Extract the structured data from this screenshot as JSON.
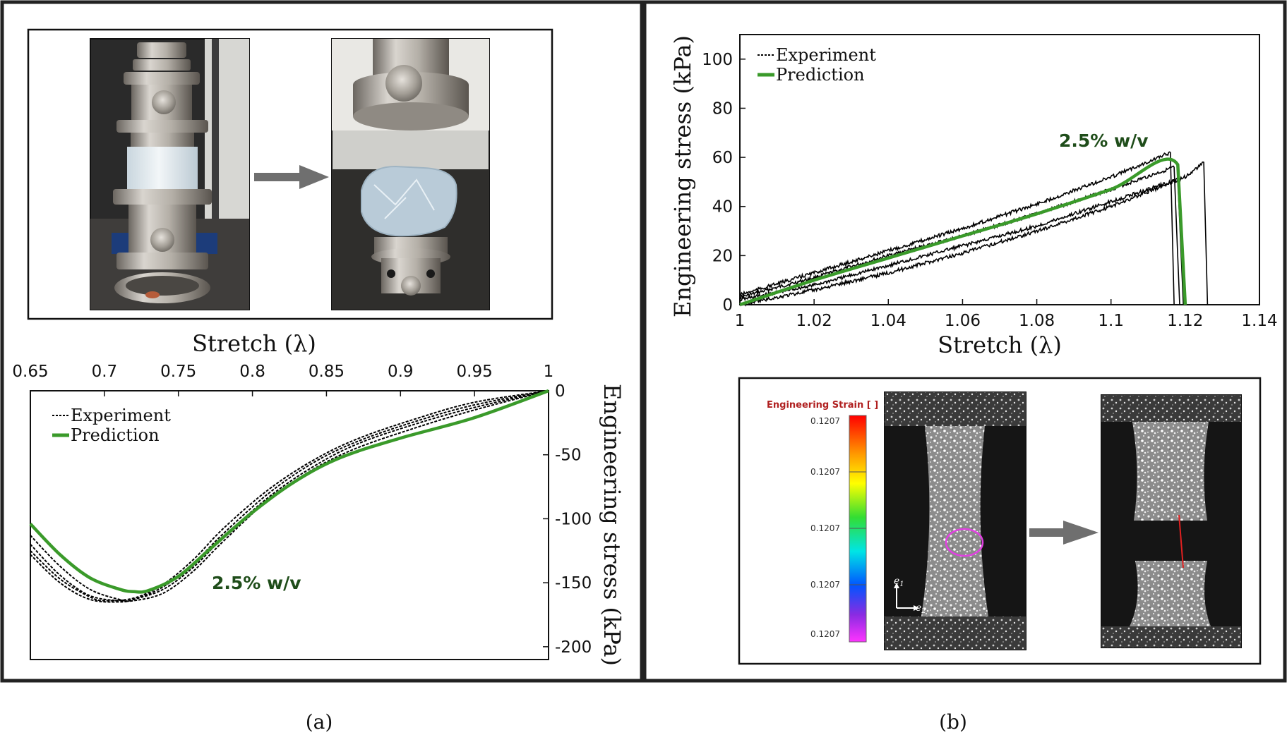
{
  "panels": [
    {
      "label": "(a)"
    },
    {
      "label": "(b)"
    }
  ],
  "photos": {
    "compression_before": "compression test fixture with cylindrical hydrogel sample",
    "compression_after": "fractured hydrogel sample after compression"
  },
  "dic": {
    "colorbar_title": "Engineering Strain [ ]",
    "colorbar_ticks": [
      "0.1207",
      "0.1207",
      "0.1207",
      "0.1207",
      "0.1207"
    ],
    "axis_e1": "e",
    "axis_e1_sub": "1",
    "axis_e2": "e",
    "axis_e2_sub": "2"
  },
  "colors": {
    "prediction": "#3a9a2a",
    "experiment": "#000000",
    "annotation": "#1f4d1a",
    "arrow": "#6f6f6f",
    "dic_title": "#b02020"
  },
  "chart_data": [
    {
      "type": "line",
      "name": "compression",
      "title": "",
      "xlabel": "Stretch (λ)",
      "ylabel": "Engineering stress (kPa)",
      "xlim": [
        0.65,
        1.0
      ],
      "ylim": [
        -210,
        0
      ],
      "xticks": [
        0.65,
        0.7,
        0.75,
        0.8,
        0.85,
        0.9,
        0.95,
        1.0
      ],
      "xtick_labels": [
        "0.65",
        "0.7",
        "0.75",
        "0.8",
        "0.85",
        "0.9",
        "0.95",
        "1"
      ],
      "yticks": [
        0,
        -50,
        -100,
        -150,
        -200
      ],
      "ytick_labels": [
        "0",
        "-50",
        "-100",
        "-150",
        "-200"
      ],
      "legend": [
        "Experiment",
        "Prediction"
      ],
      "legend_position": "top-left",
      "annotation": "2.5% w/v",
      "series": [
        {
          "name": "Prediction",
          "style": "solid",
          "x": [
            0.65,
            0.67,
            0.69,
            0.71,
            0.72,
            0.73,
            0.75,
            0.77,
            0.8,
            0.83,
            0.86,
            0.9,
            0.95,
            1.0
          ],
          "y": [
            -104,
            -128,
            -146,
            -155,
            -157,
            -156,
            -145,
            -125,
            -95,
            -70,
            -52,
            -37,
            -21,
            0
          ]
        },
        {
          "name": "Experiment 1",
          "style": "dashed",
          "x": [
            0.65,
            0.67,
            0.69,
            0.71,
            0.72,
            0.74,
            0.76,
            0.78,
            0.81,
            0.84,
            0.87,
            0.91,
            0.95,
            1.0
          ],
          "y": [
            -113,
            -137,
            -155,
            -163,
            -164,
            -158,
            -141,
            -118,
            -86,
            -62,
            -45,
            -29,
            -15,
            0
          ]
        },
        {
          "name": "Experiment 2",
          "style": "dashed",
          "x": [
            0.65,
            0.67,
            0.69,
            0.71,
            0.72,
            0.74,
            0.76,
            0.78,
            0.81,
            0.84,
            0.87,
            0.91,
            0.95,
            1.0
          ],
          "y": [
            -120,
            -144,
            -160,
            -164,
            -163,
            -153,
            -135,
            -112,
            -81,
            -57,
            -40,
            -24,
            -11,
            0
          ]
        },
        {
          "name": "Experiment 3",
          "style": "dashed",
          "x": [
            0.65,
            0.67,
            0.69,
            0.7,
            0.72,
            0.74,
            0.76,
            0.78,
            0.81,
            0.84,
            0.87,
            0.91,
            0.95,
            1.0
          ],
          "y": [
            -125,
            -147,
            -161,
            -164,
            -162,
            -151,
            -132,
            -108,
            -78,
            -55,
            -38,
            -22,
            -9,
            0
          ]
        },
        {
          "name": "Experiment 4",
          "style": "dashed",
          "x": [
            0.65,
            0.67,
            0.69,
            0.71,
            0.72,
            0.74,
            0.76,
            0.78,
            0.81,
            0.84,
            0.87,
            0.91,
            0.95,
            1.0
          ],
          "y": [
            -128,
            -150,
            -163,
            -165,
            -163,
            -155,
            -138,
            -115,
            -84,
            -60,
            -42,
            -26,
            -13,
            0
          ]
        }
      ]
    },
    {
      "type": "line",
      "name": "tension",
      "title": "",
      "xlabel": "Stretch (λ)",
      "ylabel": "Engineering stress (kPa)",
      "xlim": [
        1.0,
        1.14
      ],
      "ylim": [
        0,
        110
      ],
      "xticks": [
        1.0,
        1.02,
        1.04,
        1.06,
        1.08,
        1.1,
        1.12,
        1.14
      ],
      "xtick_labels": [
        "1",
        "1.02",
        "1.04",
        "1.06",
        "1.08",
        "1.1",
        "1.12",
        "1.14"
      ],
      "yticks": [
        0,
        20,
        40,
        60,
        80,
        100
      ],
      "ytick_labels": [
        "0",
        "20",
        "40",
        "60",
        "80",
        "100"
      ],
      "legend": [
        "Experiment",
        "Prediction"
      ],
      "legend_position": "top-left",
      "annotation": "2.5% w/v",
      "series": [
        {
          "name": "Prediction",
          "style": "solid",
          "x": [
            1.0,
            1.02,
            1.04,
            1.06,
            1.08,
            1.1,
            1.118,
            1.12
          ],
          "y": [
            0,
            10,
            19,
            28,
            37,
            47,
            57,
            0
          ]
        },
        {
          "name": "Experiment 1",
          "style": "noisy",
          "x": [
            1.0,
            1.02,
            1.04,
            1.06,
            1.08,
            1.1,
            1.117,
            1.1185
          ],
          "y": [
            3,
            11,
            20,
            28,
            37,
            47,
            56,
            0
          ]
        },
        {
          "name": "Experiment 2",
          "style": "noisy",
          "x": [
            1.0,
            1.02,
            1.04,
            1.06,
            1.08,
            1.1,
            1.118,
            1.1195
          ],
          "y": [
            2,
            8,
            16,
            24,
            32,
            42,
            51,
            0
          ]
        },
        {
          "name": "Experiment 3",
          "style": "noisy",
          "x": [
            1.0,
            1.02,
            1.04,
            1.06,
            1.08,
            1.1,
            1.12,
            1.125,
            1.126
          ],
          "y": [
            0,
            6,
            13,
            21,
            30,
            40,
            52,
            58,
            0
          ]
        },
        {
          "name": "Experiment 4",
          "style": "noisy",
          "x": [
            1.0,
            1.02,
            1.04,
            1.06,
            1.08,
            1.1,
            1.116,
            1.117
          ],
          "y": [
            4,
            13,
            22,
            31,
            41,
            52,
            62,
            0
          ]
        }
      ]
    }
  ]
}
